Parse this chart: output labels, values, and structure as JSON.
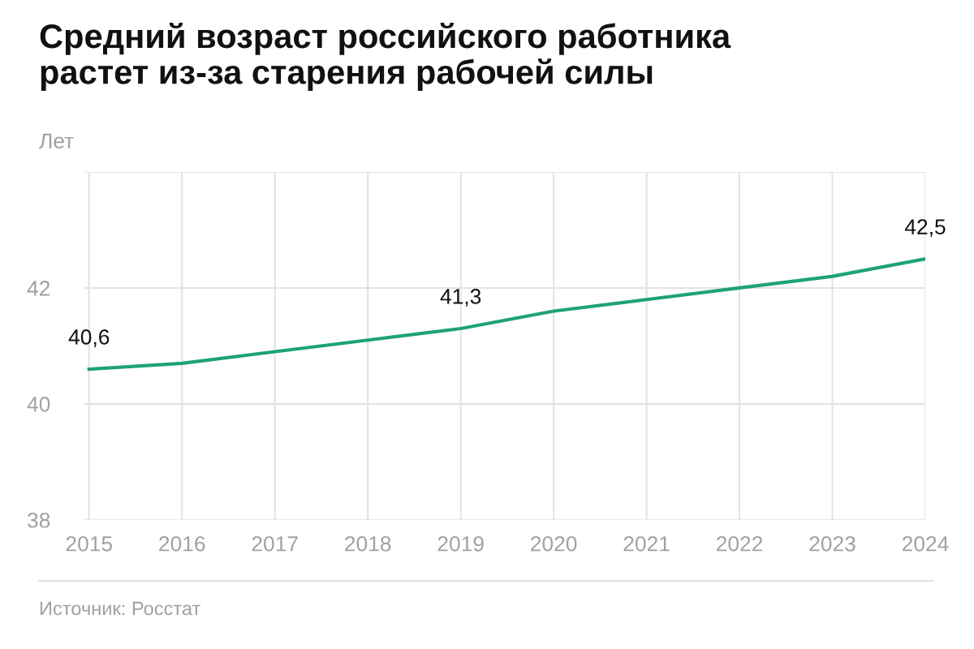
{
  "chart_data": {
    "type": "line",
    "title": "Средний возраст российского работника\nрастет из-за старения рабочей силы",
    "ylabel": "Лет",
    "categories": [
      "2015",
      "2016",
      "2017",
      "2018",
      "2019",
      "2020",
      "2021",
      "2022",
      "2023",
      "2024"
    ],
    "series": [
      {
        "color": "#1fa374",
        "values": [
          40.6,
          40.7,
          40.9,
          41.1,
          41.3,
          41.6,
          41.8,
          42.0,
          42.2,
          42.5
        ],
        "value_labels": [
          "40,6",
          null,
          null,
          null,
          "41,3",
          null,
          null,
          null,
          null,
          "42,5"
        ]
      }
    ],
    "ylim": [
      38,
      44
    ],
    "yticks": [
      38,
      40,
      42,
      {
        "value": 44,
        "label": null
      }
    ],
    "grid": true,
    "legend": false,
    "marker": "none",
    "line_style": "solid",
    "annotations": [
      "Источник: Росстат"
    ]
  }
}
